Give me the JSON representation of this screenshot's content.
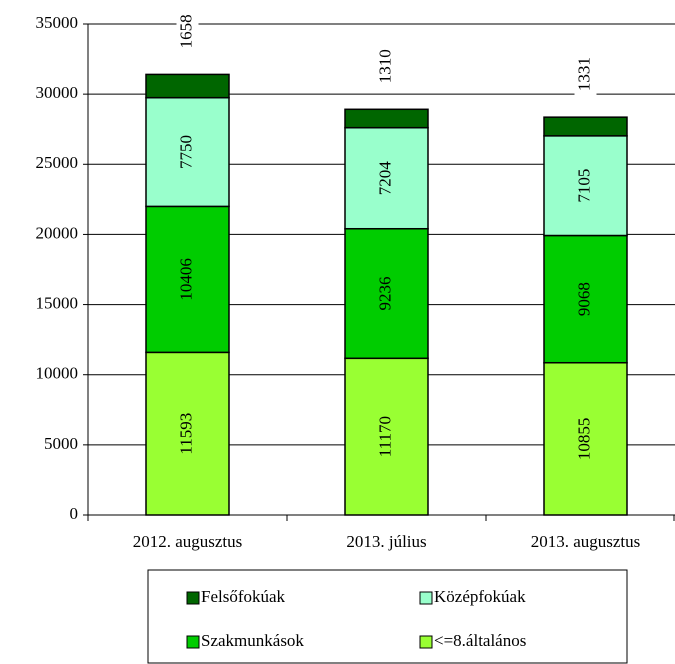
{
  "chart_data": {
    "type": "stacked_bar",
    "categories": [
      "2012. augusztus",
      "2013. július",
      "2013. augusztus"
    ],
    "series": [
      {
        "name": "<=8.általános",
        "color": "#99ff33",
        "values": [
          11593,
          11170,
          10855
        ]
      },
      {
        "name": "Szakmunkások",
        "color": "#00cc00",
        "values": [
          10406,
          9236,
          9068
        ]
      },
      {
        "name": "Középfokúak",
        "color": "#99ffcc",
        "values": [
          7750,
          7204,
          7105
        ]
      },
      {
        "name": "Felsőfokúak",
        "color": "#006600",
        "values": [
          1658,
          1310,
          1331
        ]
      }
    ],
    "ylim": [
      0,
      35000
    ],
    "yticks": [
      0,
      5000,
      10000,
      15000,
      20000,
      25000,
      30000,
      35000
    ],
    "grid": true
  }
}
